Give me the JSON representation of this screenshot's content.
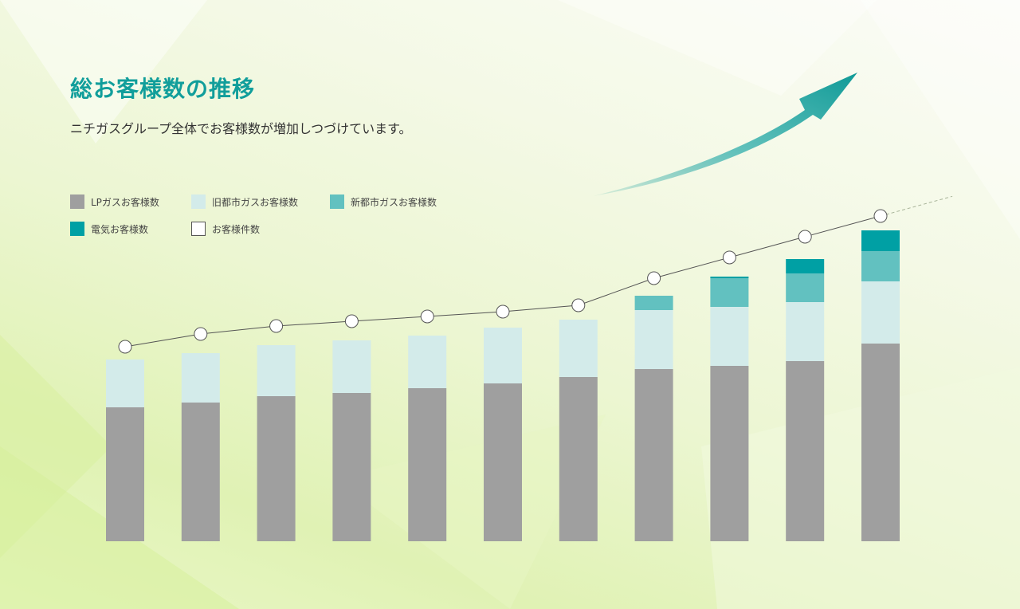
{
  "header": {
    "title": "総お客様数の推移",
    "subtitle": "ニチガスグループ全体でお客様数が増加しつづけています。"
  },
  "colors": {
    "lp": "#9f9f9f",
    "old_city": "#d3ebea",
    "new_city": "#62c1c0",
    "electric": "#00a0a4",
    "total_marker": "#ffffff",
    "arrow": "#109a97",
    "title": "#119e9b"
  },
  "chart_data": {
    "type": "bar",
    "stacked": true,
    "title": "総お客様数の推移",
    "xlabel": "",
    "ylabel": "",
    "categories": [
      "",
      "",
      "",
      "",
      "",
      "",
      "",
      "",
      "",
      "",
      ""
    ],
    "ylim": [
      0,
      275
    ],
    "axes_visible": false,
    "grid": false,
    "legend_position": "top-left",
    "series": [
      {
        "name": "LPガスお客様数",
        "color": "#9f9f9f",
        "values": [
          84,
          87,
          91,
          93,
          96,
          99,
          103,
          108,
          110,
          113,
          124
        ]
      },
      {
        "name": "旧都市ガスお客様数",
        "color": "#d3ebea",
        "values": [
          30,
          31,
          32,
          33,
          33,
          35,
          36,
          37,
          37,
          37,
          39
        ]
      },
      {
        "name": "新都市ガスお客様数",
        "color": "#62c1c0",
        "values": [
          0,
          0,
          0,
          0,
          0,
          0,
          0,
          9,
          18,
          18,
          19
        ]
      },
      {
        "name": "電気お客様数",
        "color": "#00a0a4",
        "values": [
          0,
          0,
          0,
          0,
          0,
          0,
          0,
          0,
          1,
          9,
          13
        ]
      }
    ],
    "line_series": {
      "name": "お客様件数",
      "values": [
        122,
        130,
        135,
        138,
        141,
        144,
        148,
        165,
        178,
        191,
        204
      ]
    }
  }
}
